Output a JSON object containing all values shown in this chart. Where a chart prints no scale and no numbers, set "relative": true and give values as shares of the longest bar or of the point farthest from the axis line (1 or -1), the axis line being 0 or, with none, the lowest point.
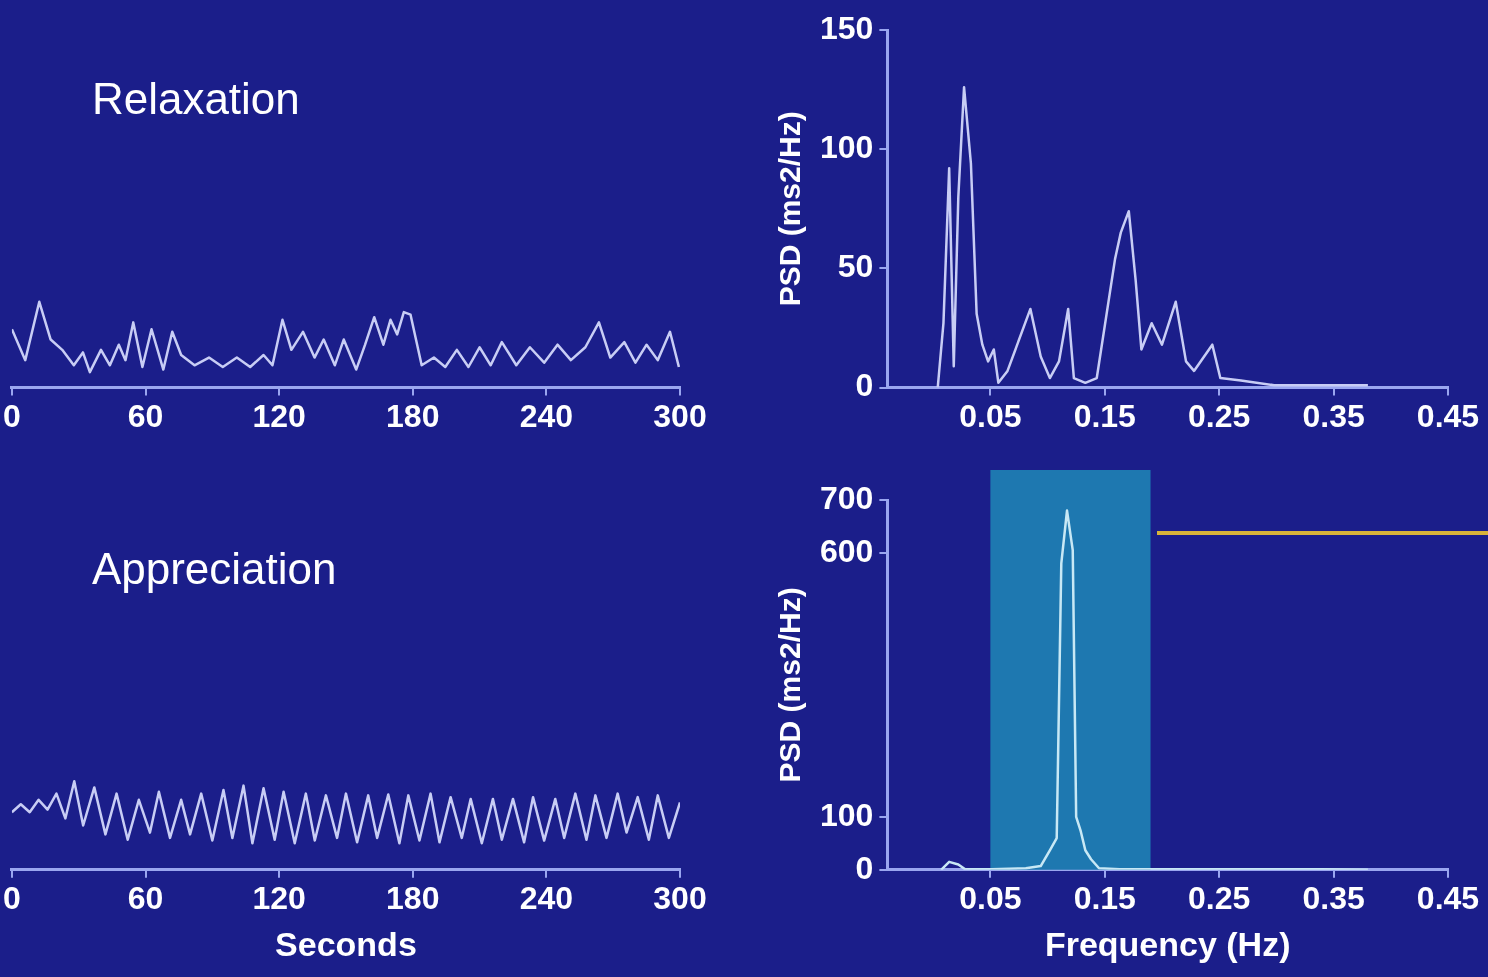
{
  "chart_data": [
    {
      "type": "line",
      "title": "Relaxation",
      "relative": true,
      "xlim": [
        0,
        300
      ],
      "xticks": [
        0,
        60,
        120,
        180,
        240,
        300
      ],
      "x": [
        0,
        6,
        12.3,
        17.4,
        22.6,
        27.8,
        31.9,
        35,
        40,
        44,
        48,
        51,
        54.5,
        58.6,
        62.7,
        68,
        72,
        76,
        82,
        88.5,
        94.7,
        101,
        107,
        113,
        117,
        121.5,
        125.5,
        130.7,
        135.9,
        140,
        145,
        149,
        154.6,
        158.6,
        162.7,
        166.8,
        170,
        173,
        176,
        179,
        184,
        189.5,
        194.6,
        199.8,
        205,
        210,
        215,
        220,
        226.5,
        232.6,
        239,
        245,
        251,
        257.5,
        263.6,
        268.7,
        275,
        280,
        285,
        290,
        295.5,
        299.5
      ],
      "series": [
        {
          "color": "#c8cdf5",
          "values": [
            0.68,
            0.32,
            1.0,
            0.56,
            0.44,
            0.26,
            0.41,
            0.18,
            0.44,
            0.26,
            0.5,
            0.32,
            0.76,
            0.24,
            0.68,
            0.21,
            0.65,
            0.38,
            0.26,
            0.35,
            0.24,
            0.35,
            0.24,
            0.38,
            0.26,
            0.79,
            0.44,
            0.65,
            0.35,
            0.56,
            0.26,
            0.56,
            0.21,
            0.5,
            0.82,
            0.5,
            0.79,
            0.62,
            0.88,
            0.85,
            0.26,
            0.35,
            0.24,
            0.44,
            0.24,
            0.47,
            0.26,
            0.53,
            0.26,
            0.47,
            0.29,
            0.5,
            0.32,
            0.47,
            0.76,
            0.35,
            0.53,
            0.29,
            0.5,
            0.32,
            0.65,
            0.24
          ]
        }
      ]
    },
    {
      "type": "line",
      "ylabel": "PSD (ms2/Hz)",
      "xlim": [
        -0.04,
        0.45
      ],
      "xticks": [
        0.05,
        0.15,
        0.25,
        0.35,
        0.45
      ],
      "ylim": [
        0,
        150
      ],
      "yticks": [
        0,
        50,
        100,
        150
      ],
      "x": [
        0.004,
        0.009,
        0.014,
        0.018,
        0.022,
        0.027,
        0.033,
        0.038,
        0.043,
        0.048,
        0.053,
        0.057,
        0.065,
        0.085,
        0.094,
        0.102,
        0.11,
        0.118,
        0.123,
        0.133,
        0.143,
        0.159,
        0.164,
        0.171,
        0.177,
        0.182,
        0.191,
        0.2,
        0.212,
        0.221,
        0.228,
        0.244,
        0.251,
        0.269,
        0.298,
        0.339,
        0.38
      ],
      "series": [
        {
          "color": "#c8cdf5",
          "values": [
            0,
            27,
            92,
            9,
            80,
            126,
            94,
            31,
            18,
            11,
            16,
            2,
            7,
            33,
            13,
            4,
            11,
            33,
            4,
            2,
            4,
            54,
            65,
            74,
            45,
            16,
            27,
            18,
            36,
            11,
            7,
            18,
            4,
            3,
            1,
            1,
            1
          ]
        }
      ]
    },
    {
      "type": "line",
      "title": "Appreciation",
      "xlabel": "Seconds",
      "relative": true,
      "xlim": [
        0,
        300
      ],
      "xticks": [
        0,
        60,
        120,
        180,
        240,
        300
      ],
      "x": [
        0,
        4,
        8,
        12,
        16,
        20,
        24,
        28,
        32,
        37,
        42,
        47,
        52,
        57,
        62,
        66,
        71,
        76,
        80,
        85,
        90,
        95,
        99,
        104,
        108,
        113,
        118,
        122,
        127,
        132,
        136,
        141,
        146,
        150,
        155,
        160,
        164,
        169,
        174,
        178,
        183,
        188,
        192,
        197,
        202,
        206,
        211,
        216,
        220,
        225,
        230,
        234,
        239,
        244,
        248,
        253,
        258,
        262,
        267,
        272,
        276,
        281,
        286,
        290,
        295,
        300
      ],
      "series": [
        {
          "color": "#c8cdf5",
          "values": [
            0.65,
            0.74,
            0.65,
            0.79,
            0.68,
            0.86,
            0.58,
            1.0,
            0.5,
            0.93,
            0.4,
            0.86,
            0.34,
            0.79,
            0.42,
            0.88,
            0.36,
            0.79,
            0.4,
            0.86,
            0.33,
            0.9,
            0.36,
            0.95,
            0.3,
            0.92,
            0.34,
            0.88,
            0.3,
            0.86,
            0.33,
            0.84,
            0.36,
            0.86,
            0.31,
            0.84,
            0.36,
            0.85,
            0.3,
            0.84,
            0.33,
            0.86,
            0.31,
            0.82,
            0.36,
            0.8,
            0.3,
            0.8,
            0.34,
            0.8,
            0.31,
            0.82,
            0.33,
            0.8,
            0.36,
            0.86,
            0.34,
            0.84,
            0.36,
            0.86,
            0.42,
            0.82,
            0.34,
            0.84,
            0.36,
            0.76
          ]
        }
      ]
    },
    {
      "type": "line",
      "xlabel": "Frequency (Hz)",
      "ylabel": "PSD (ms2/Hz)",
      "xlim": [
        -0.04,
        0.45
      ],
      "xticks": [
        0.05,
        0.15,
        0.25,
        0.35,
        0.45
      ],
      "ylim": [
        0,
        700
      ],
      "yticks": [
        0,
        100,
        600,
        700
      ],
      "bands": [
        {
          "axis": "x",
          "from": 0.05,
          "to": 0.19,
          "color": "#1e78b0"
        }
      ],
      "x": [
        0.007,
        0.014,
        0.022,
        0.028,
        0.051,
        0.081,
        0.094,
        0.102,
        0.108,
        0.112,
        0.117,
        0.122,
        0.125,
        0.129,
        0.133,
        0.138,
        0.145,
        0.163,
        0.215,
        0.267,
        0.339,
        0.38
      ],
      "series": [
        {
          "color": "#c8e8f5",
          "values": [
            0,
            15,
            10,
            1,
            1,
            3,
            7,
            37,
            60,
            580,
            680,
            605,
            100,
            73,
            37,
            20,
            3,
            1,
            1,
            1,
            1,
            0
          ]
        }
      ]
    }
  ]
}
